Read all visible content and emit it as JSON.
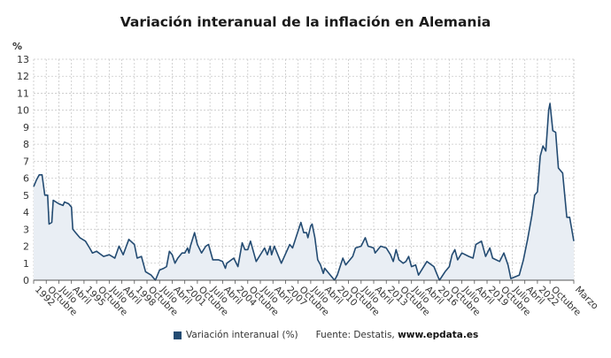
{
  "chart_data": {
    "type": "area",
    "title": "Variación interanual de la inflación en Alemania",
    "ylabel": "%",
    "xlabel": "",
    "ylim": [
      0,
      13
    ],
    "yticks": [
      0,
      1,
      2,
      3,
      4,
      5,
      6,
      7,
      8,
      9,
      10,
      11,
      12,
      13
    ],
    "xlim": [
      "1992-01",
      "2024-03"
    ],
    "grid": true,
    "legend_position": "bottom",
    "colors": {
      "line": "#234b72",
      "fill": "#e9eef4",
      "grid": "#c8c8c8"
    },
    "xticks": [
      {
        "date": "1992-01",
        "label": "1992"
      },
      {
        "date": "1992-10",
        "label": "Octubre"
      },
      {
        "date": "1993-07",
        "label": "Julio"
      },
      {
        "date": "1994-04",
        "label": "Abril"
      },
      {
        "date": "1995-01",
        "label": "1995"
      },
      {
        "date": "1995-10",
        "label": "Octubre"
      },
      {
        "date": "1996-07",
        "label": "Julio"
      },
      {
        "date": "1997-04",
        "label": "Abril"
      },
      {
        "date": "1998-01",
        "label": "1998"
      },
      {
        "date": "1998-10",
        "label": "Octubre"
      },
      {
        "date": "1999-07",
        "label": "Julio"
      },
      {
        "date": "2000-04",
        "label": "Abril"
      },
      {
        "date": "2001-01",
        "label": "2001"
      },
      {
        "date": "2001-10",
        "label": "Octubre"
      },
      {
        "date": "2002-07",
        "label": "Julio"
      },
      {
        "date": "2003-04",
        "label": "Abril"
      },
      {
        "date": "2004-01",
        "label": "2004"
      },
      {
        "date": "2004-10",
        "label": "Octubre"
      },
      {
        "date": "2005-07",
        "label": "Julio"
      },
      {
        "date": "2006-04",
        "label": "Abril"
      },
      {
        "date": "2007-01",
        "label": "2007"
      },
      {
        "date": "2007-10",
        "label": "Octubre"
      },
      {
        "date": "2008-07",
        "label": "Julio"
      },
      {
        "date": "2009-04",
        "label": "Abril"
      },
      {
        "date": "2010-01",
        "label": "2010"
      },
      {
        "date": "2010-10",
        "label": "Octubre"
      },
      {
        "date": "2011-07",
        "label": "Julio"
      },
      {
        "date": "2012-04",
        "label": "Abril"
      },
      {
        "date": "2013-01",
        "label": "2013"
      },
      {
        "date": "2013-10",
        "label": "Octubre"
      },
      {
        "date": "2014-07",
        "label": "Julio"
      },
      {
        "date": "2015-04",
        "label": "Abril"
      },
      {
        "date": "2016-01",
        "label": "2016"
      },
      {
        "date": "2016-10",
        "label": "Octubre"
      },
      {
        "date": "2017-07",
        "label": "Julio"
      },
      {
        "date": "2018-04",
        "label": "Abril"
      },
      {
        "date": "2019-01",
        "label": "2019"
      },
      {
        "date": "2019-10",
        "label": "Octubre"
      },
      {
        "date": "2020-07",
        "label": "Julio"
      },
      {
        "date": "2021-04",
        "label": "Abril"
      },
      {
        "date": "2022-01",
        "label": "2022"
      },
      {
        "date": "2022-10",
        "label": "Octubre"
      },
      {
        "date": "2024-03",
        "label": "Marzo"
      }
    ],
    "series": [
      {
        "name": "Variación interanual (%)",
        "x": [
          "1992-01",
          "1992-03",
          "1992-05",
          "1992-07",
          "1992-09",
          "1992-11",
          "1992-12",
          "1993-02",
          "1993-03",
          "1993-07",
          "1993-10",
          "1993-11",
          "1994-02",
          "1994-04",
          "1994-05",
          "1994-07",
          "1994-10",
          "1995-02",
          "1995-05",
          "1995-07",
          "1995-10",
          "1996-03",
          "1996-07",
          "1996-11",
          "1997-02",
          "1997-05",
          "1997-09",
          "1998-01",
          "1998-03",
          "1998-06",
          "1998-09",
          "1999-01",
          "1999-04",
          "1999-07",
          "1999-10",
          "1999-12",
          "2000-02",
          "2000-04",
          "2000-06",
          "2000-08",
          "2000-11",
          "2001-01",
          "2001-03",
          "2001-04",
          "2001-05",
          "2001-08",
          "2001-10",
          "2002-01",
          "2002-04",
          "2002-06",
          "2002-09",
          "2003-01",
          "2003-04",
          "2003-06",
          "2003-07",
          "2003-12",
          "2004-03",
          "2004-06",
          "2004-08",
          "2004-10",
          "2004-12",
          "2005-04",
          "2005-10",
          "2005-12",
          "2006-02",
          "2006-03",
          "2006-05",
          "2006-10",
          "2007-04",
          "2007-06",
          "2007-12",
          "2008-02",
          "2008-04",
          "2008-05",
          "2008-07",
          "2008-08",
          "2008-10",
          "2008-12",
          "2009-02",
          "2009-04",
          "2009-05",
          "2009-08",
          "2009-12",
          "2010-02",
          "2010-06",
          "2010-08",
          "2010-10",
          "2011-01",
          "2011-03",
          "2011-07",
          "2011-10",
          "2011-12",
          "2012-04",
          "2012-05",
          "2012-09",
          "2013-01",
          "2013-04",
          "2013-06",
          "2013-08",
          "2013-10",
          "2014-01",
          "2014-03",
          "2014-05",
          "2014-07",
          "2014-10",
          "2014-12",
          "2015-06",
          "2015-11",
          "2016-01",
          "2016-03",
          "2016-07",
          "2016-10",
          "2016-12",
          "2017-02",
          "2017-04",
          "2017-07",
          "2017-12",
          "2018-03",
          "2018-05",
          "2018-09",
          "2018-12",
          "2019-03",
          "2019-05",
          "2019-10",
          "2020-01",
          "2020-04",
          "2020-06",
          "2020-12",
          "2021-03",
          "2021-06",
          "2021-09",
          "2021-11",
          "2022-01",
          "2022-03",
          "2022-05",
          "2022-07",
          "2022-09",
          "2022-10",
          "2022-12",
          "2023-02",
          "2023-04",
          "2023-07",
          "2023-10",
          "2023-12",
          "2024-03"
        ],
        "y": [
          5.5,
          5.9,
          6.2,
          6.2,
          5.0,
          5.0,
          3.3,
          3.4,
          4.7,
          4.5,
          4.4,
          4.6,
          4.5,
          4.3,
          3.0,
          2.8,
          2.5,
          2.3,
          1.9,
          1.6,
          1.7,
          1.4,
          1.5,
          1.3,
          2.0,
          1.5,
          2.4,
          2.1,
          1.3,
          1.4,
          0.5,
          0.3,
          0.0,
          0.6,
          0.7,
          0.8,
          1.7,
          1.5,
          1.0,
          1.3,
          1.6,
          1.6,
          1.9,
          1.6,
          2.0,
          2.8,
          2.1,
          1.6,
          2.0,
          2.1,
          1.2,
          1.2,
          1.1,
          0.7,
          1.0,
          1.3,
          0.8,
          2.2,
          1.8,
          1.8,
          2.3,
          1.1,
          1.9,
          1.5,
          2.0,
          1.5,
          2.0,
          1.0,
          2.1,
          1.9,
          3.4,
          2.8,
          2.8,
          2.5,
          3.2,
          3.3,
          2.5,
          1.2,
          0.9,
          0.4,
          0.7,
          0.4,
          0.0,
          0.3,
          1.3,
          0.9,
          1.1,
          1.4,
          1.9,
          2.0,
          2.5,
          2.0,
          1.9,
          1.6,
          2.0,
          1.9,
          1.5,
          1.1,
          1.8,
          1.2,
          1.0,
          1.1,
          1.4,
          0.8,
          0.9,
          0.3,
          1.1,
          0.8,
          0.4,
          0.0,
          0.5,
          0.8,
          1.5,
          1.8,
          1.2,
          1.6,
          1.4,
          1.3,
          2.1,
          2.3,
          1.4,
          1.9,
          1.3,
          1.1,
          1.6,
          0.9,
          0.1,
          0.3,
          1.2,
          2.4,
          3.8,
          5.0,
          5.2,
          7.3,
          7.9,
          7.6,
          10.0,
          10.4,
          8.8,
          8.7,
          6.6,
          6.3,
          3.7,
          3.7,
          2.3
        ]
      }
    ]
  },
  "legend": {
    "series_label": "Variación interanual (%)",
    "source_prefix": "Fuente: Destatis, ",
    "source_site": "www.epdata.es"
  }
}
